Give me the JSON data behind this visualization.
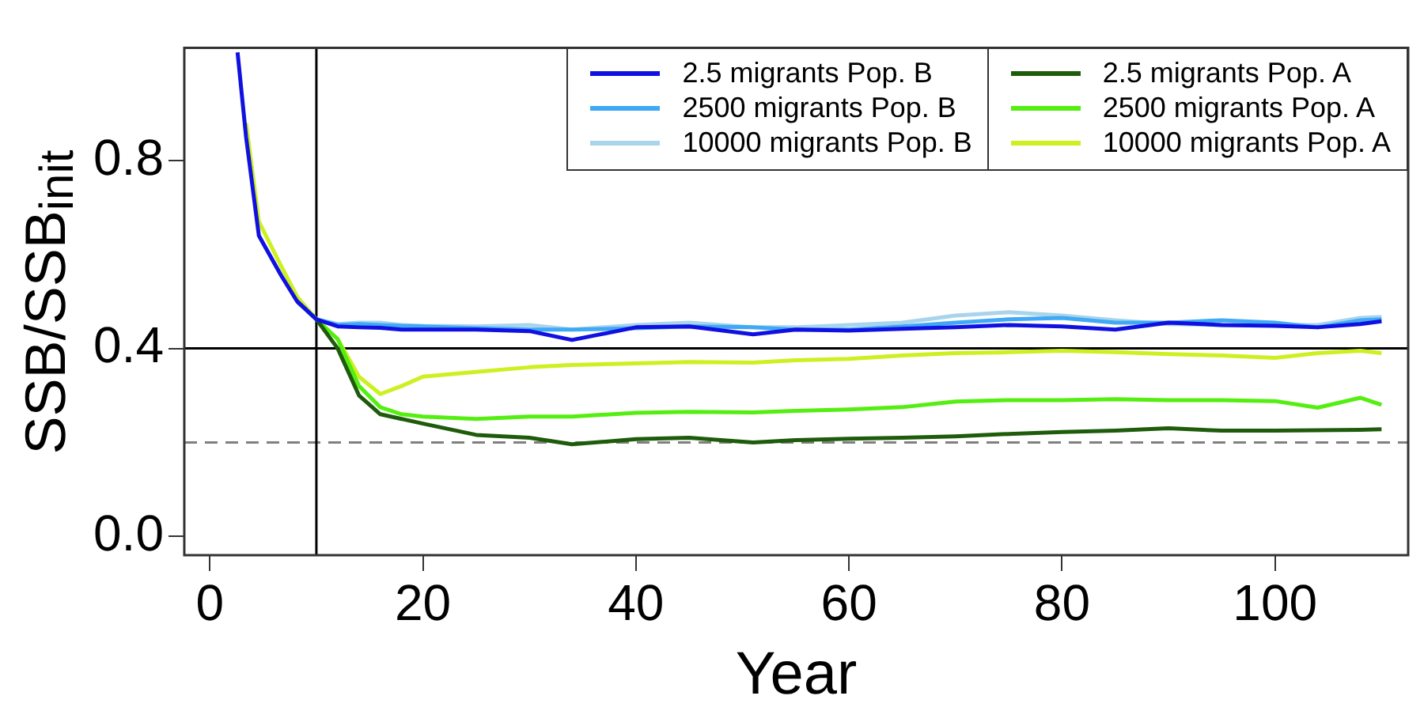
{
  "chart_data": {
    "type": "line",
    "xlabel": "Year",
    "ylabel": "SSB/SSB$_{init}$",
    "x": [
      2.6,
      3.4,
      4.6,
      6.7,
      8.2,
      10,
      12,
      14,
      16,
      18,
      20,
      25,
      30,
      34,
      40,
      45,
      51,
      55,
      60,
      65,
      70,
      75,
      80,
      85,
      90,
      95,
      100,
      104,
      108,
      110
    ],
    "series": [
      {
        "name": "2.5 migrants Pop. B",
        "color": "#1010e0",
        "values": [
          1.03,
          0.85,
          0.64,
          0.555,
          0.5,
          0.462,
          0.447,
          0.445,
          0.444,
          0.44,
          0.44,
          0.44,
          0.437,
          0.418,
          0.445,
          0.447,
          0.43,
          0.44,
          0.438,
          0.442,
          0.445,
          0.45,
          0.447,
          0.44,
          0.455,
          0.45,
          0.448,
          0.445,
          0.452,
          0.458
        ]
      },
      {
        "name": "2500 migrants Pop. B",
        "color": "#3fa9f5",
        "values": [
          null,
          null,
          null,
          null,
          0.5,
          0.462,
          0.45,
          0.452,
          0.45,
          0.448,
          0.447,
          0.443,
          0.44,
          0.44,
          0.443,
          0.447,
          0.445,
          0.44,
          0.44,
          0.447,
          0.455,
          0.462,
          0.465,
          0.455,
          0.455,
          0.46,
          0.455,
          0.445,
          0.46,
          0.462
        ]
      },
      {
        "name": "10000 migrants Pop. B",
        "color": "#a8d4ec",
        "values": [
          null,
          null,
          null,
          null,
          0.5,
          0.462,
          0.452,
          0.455,
          0.455,
          0.45,
          0.448,
          0.447,
          0.45,
          0.44,
          0.45,
          0.455,
          0.445,
          0.445,
          0.45,
          0.455,
          0.47,
          0.477,
          0.47,
          0.46,
          0.452,
          0.45,
          0.45,
          0.45,
          0.465,
          0.467
        ]
      },
      {
        "name": "2.5 migrants Pop. A",
        "color": "#1e5c0c",
        "values": [
          null,
          null,
          null,
          null,
          0.5,
          0.462,
          0.4,
          0.3,
          0.26,
          0.25,
          0.24,
          0.216,
          0.21,
          0.196,
          0.207,
          0.21,
          0.2,
          0.205,
          0.208,
          0.21,
          0.213,
          0.218,
          0.222,
          0.225,
          0.23,
          0.225,
          0.225,
          0.226,
          0.227,
          0.228
        ]
      },
      {
        "name": "2500 migrants Pop. A",
        "color": "#55ee11",
        "values": [
          null,
          null,
          null,
          null,
          0.5,
          0.462,
          0.42,
          0.32,
          0.275,
          0.26,
          0.255,
          0.25,
          0.255,
          0.255,
          0.263,
          0.265,
          0.264,
          0.267,
          0.27,
          0.275,
          0.287,
          0.29,
          0.29,
          0.292,
          0.29,
          0.29,
          0.288,
          0.274,
          0.295,
          0.28
        ]
      },
      {
        "name": "10000 migrants Pop. A",
        "color": "#ccf020",
        "values": [
          null,
          0.88,
          0.67,
          0.575,
          0.51,
          0.462,
          0.42,
          0.34,
          0.303,
          0.32,
          0.34,
          0.35,
          0.36,
          0.365,
          0.368,
          0.371,
          0.37,
          0.375,
          0.378,
          0.385,
          0.39,
          0.392,
          0.395,
          0.392,
          0.388,
          0.385,
          0.38,
          0.39,
          0.395,
          0.39
        ]
      }
    ],
    "xlim": [
      -2.4,
      112.5
    ],
    "xticks": [
      0,
      20,
      40,
      60,
      80,
      100
    ],
    "ylim": [
      -0.04,
      1.04
    ],
    "yticks": [
      {
        "value": 0,
        "label": "0.0"
      },
      {
        "value": 0.4,
        "label": "0.4"
      },
      {
        "value": 0.8,
        "label": "0.8"
      }
    ],
    "ref_lines": [
      {
        "axis": "y",
        "value": 0.4,
        "color": "#000000",
        "line_style": "solid"
      },
      {
        "axis": "y",
        "value": 0.2,
        "color": "#808080",
        "line_style": "dashed"
      },
      {
        "axis": "x",
        "value": 10,
        "color": "#000000",
        "line_style": "solid"
      }
    ],
    "grid": false,
    "legend": "top right",
    "marker": "none",
    "line_style": "solid"
  }
}
